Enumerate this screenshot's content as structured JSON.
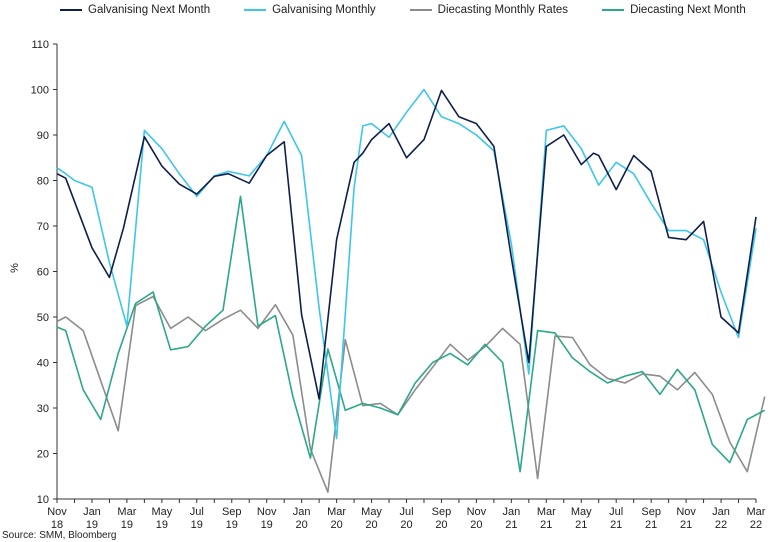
{
  "chart_data": {
    "type": "line",
    "title": "",
    "ylabel": "%",
    "xlabel": "",
    "ylim": [
      10,
      110
    ],
    "yticks": [
      10,
      20,
      30,
      40,
      50,
      60,
      70,
      80,
      90,
      100,
      110
    ],
    "grid": false,
    "legend_position": "top",
    "x_tick_labels": [
      [
        "Nov",
        "18"
      ],
      [
        "Jan",
        "19"
      ],
      [
        "Mar",
        "19"
      ],
      [
        "May",
        "19"
      ],
      [
        "Jul",
        "19"
      ],
      [
        "Sep",
        "19"
      ],
      [
        "Nov",
        "19"
      ],
      [
        "Jan",
        "20"
      ],
      [
        "Mar",
        "20"
      ],
      [
        "May",
        "20"
      ],
      [
        "Jul",
        "20"
      ],
      [
        "Sep",
        "20"
      ],
      [
        "Nov",
        "20"
      ],
      [
        "Jan",
        "21"
      ],
      [
        "Mar",
        "21"
      ],
      [
        "May",
        "21"
      ],
      [
        "Jul",
        "21"
      ],
      [
        "Sep",
        "21"
      ],
      [
        "Nov",
        "21"
      ],
      [
        "Jan",
        "22"
      ],
      [
        "Mar",
        "22"
      ]
    ],
    "x_count": 41,
    "series": [
      {
        "name": "Galvanising Next Month",
        "color": "#0f1f4b",
        "x": [
          0,
          0.5,
          2,
          3,
          3.8,
          5,
          6,
          7,
          8,
          9,
          9.8,
          11,
          12,
          13,
          14,
          15,
          16,
          17,
          17.5,
          18,
          19,
          20,
          21,
          22,
          23,
          24,
          25,
          26,
          27,
          28,
          29,
          30,
          30.7,
          31,
          32,
          33,
          34,
          35,
          36,
          37,
          38,
          39,
          40
        ],
        "values": [
          81.5,
          80.5,
          65.2,
          58.7,
          69.5,
          89.6,
          83.2,
          79.2,
          77.0,
          80.9,
          81.5,
          79.4,
          85.5,
          88.5,
          50.5,
          32.0,
          67.0,
          84.0,
          86.0,
          89.0,
          92.5,
          85.0,
          89.0,
          99.8,
          94.0,
          92.5,
          87.5,
          63.0,
          40.0,
          87.5,
          90.0,
          83.5,
          86.0,
          85.5,
          78.0,
          85.5,
          82.0,
          67.5,
          67.0,
          71.0,
          50.0,
          46.5,
          72.0
        ]
      },
      {
        "name": "Galvanising Monthly",
        "color": "#3dc6ec",
        "x": [
          0,
          0.5,
          1,
          2,
          3,
          4,
          5,
          6,
          7,
          8,
          9,
          9.8,
          11,
          12,
          13,
          14,
          15,
          16,
          17,
          17.5,
          18,
          19,
          20,
          21,
          22,
          23,
          24,
          25,
          26,
          27,
          28,
          29,
          30,
          31,
          32,
          33,
          34,
          35,
          36,
          37,
          38,
          39,
          40
        ],
        "values": [
          82.8,
          81.5,
          80.0,
          78.5,
          62.0,
          48.0,
          91.0,
          87.0,
          81.5,
          76.5,
          81.0,
          82.0,
          81.0,
          85.5,
          93.0,
          85.5,
          52.0,
          23.3,
          78.5,
          92.0,
          92.5,
          89.5,
          95.0,
          100.0,
          94.0,
          92.5,
          90.0,
          86.5,
          66.0,
          37.5,
          91.0,
          92.0,
          87.0,
          79.0,
          84.0,
          81.5,
          75.0,
          69.0,
          69.0,
          67.0,
          55.5,
          45.5,
          69.5
        ]
      },
      {
        "name": "Diecasting Monthly Rates",
        "color": "#8c8c8c",
        "x": [
          0,
          0.5,
          1.5,
          2.5,
          3.5,
          4.5,
          5.5,
          6.5,
          7.5,
          8.5,
          9.5,
          10.5,
          11.5,
          12.5,
          13.5,
          14.5,
          15.5,
          16.5,
          17.5,
          18.5,
          19.5,
          20.5,
          21.5,
          22.5,
          23.5,
          24.5,
          25.5,
          26.5,
          27.5,
          28.5,
          29.5,
          30.5,
          31.5,
          32.5,
          33.5,
          34.5,
          35.5,
          36.5,
          37.5,
          38.5,
          39.5,
          40.5
        ],
        "values": [
          49.0,
          50.0,
          47.0,
          36.0,
          25.0,
          52.5,
          54.5,
          47.5,
          50.0,
          47.0,
          49.5,
          51.5,
          47.5,
          52.7,
          46.0,
          21.0,
          11.5,
          45.0,
          30.5,
          31.0,
          28.5,
          34.0,
          39.0,
          44.0,
          40.5,
          43.5,
          47.5,
          44.0,
          14.5,
          45.8,
          45.5,
          39.5,
          36.5,
          35.5,
          37.5,
          37.0,
          34.0,
          37.8,
          33.0,
          22.5,
          16.0,
          32.5
        ]
      },
      {
        "name": "Diecasting Next Month",
        "color": "#2aa88a",
        "x": [
          0,
          0.5,
          1.5,
          2.5,
          3.5,
          4.5,
          5.5,
          6.5,
          7.5,
          8.5,
          9.5,
          10.5,
          11.5,
          12.5,
          13.5,
          14.5,
          15.5,
          16.5,
          17.5,
          18.5,
          19.5,
          20.5,
          21.5,
          22.5,
          23.5,
          24.5,
          25.5,
          26.5,
          27.5,
          28.5,
          29.5,
          30.5,
          31.5,
          32.5,
          33.5,
          34.5,
          35.5,
          36.5,
          37.5,
          38.5,
          39.5,
          40.5
        ],
        "values": [
          47.8,
          47.0,
          34.0,
          27.5,
          42.0,
          53.0,
          55.5,
          42.8,
          43.5,
          48.0,
          51.5,
          76.5,
          48.0,
          50.3,
          32.5,
          19.0,
          43.0,
          29.5,
          31.0,
          30.0,
          28.5,
          35.5,
          40.0,
          42.0,
          39.5,
          44.0,
          40.0,
          16.0,
          47.0,
          46.5,
          41.0,
          38.0,
          35.5,
          37.0,
          38.0,
          33.0,
          38.5,
          34.0,
          22.0,
          18.0,
          27.5,
          29.5
        ]
      }
    ]
  },
  "source": "Source: SMM, Bloomberg"
}
